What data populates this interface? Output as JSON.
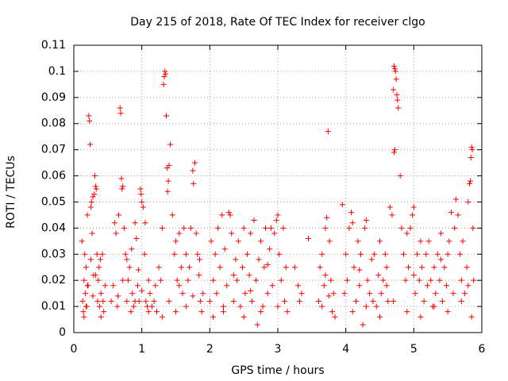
{
  "chart_data": {
    "type": "scatter",
    "title": "Day 215 of 2018, Rate Of TEC Index for receiver clgo",
    "xlabel": "GPS time / hours",
    "ylabel": "ROTI / TECUs",
    "xlim": [
      0,
      6
    ],
    "ylim": [
      0,
      0.11
    ],
    "x_ticks": [
      0,
      1,
      2,
      3,
      4,
      5,
      6
    ],
    "x_tick_labels": [
      "0",
      "1",
      "2",
      "3",
      "4",
      "5",
      "6"
    ],
    "y_ticks": [
      0,
      0.01,
      0.02,
      0.03,
      0.04,
      0.05,
      0.06,
      0.07,
      0.08,
      0.09,
      0.1,
      0.11
    ],
    "y_tick_labels": [
      "0",
      "0.01",
      "0.02",
      "0.03",
      "0.04",
      "0.05",
      "0.06",
      "0.07",
      "0.08",
      "0.09",
      "0.1",
      "0.11"
    ],
    "grid": true,
    "marker": "+",
    "color": "#ff0000",
    "series": [
      {
        "name": "ROTI",
        "points": [
          [
            0.12,
            0.035
          ],
          [
            0.13,
            0.012
          ],
          [
            0.14,
            0.008
          ],
          [
            0.15,
            0.02
          ],
          [
            0.16,
            0.03
          ],
          [
            0.17,
            0.015
          ],
          [
            0.18,
            0.025
          ],
          [
            0.19,
            0.01
          ],
          [
            0.2,
            0.045
          ],
          [
            0.21,
            0.018
          ],
          [
            0.22,
            0.083
          ],
          [
            0.23,
            0.081
          ],
          [
            0.24,
            0.072
          ],
          [
            0.25,
            0.048
          ],
          [
            0.26,
            0.05
          ],
          [
            0.27,
            0.038
          ],
          [
            0.28,
            0.052
          ],
          [
            0.29,
            0.022
          ],
          [
            0.3,
            0.053
          ],
          [
            0.31,
            0.06
          ],
          [
            0.32,
            0.056
          ],
          [
            0.33,
            0.055
          ],
          [
            0.34,
            0.03
          ],
          [
            0.35,
            0.012
          ],
          [
            0.36,
            0.02
          ],
          [
            0.37,
            0.025
          ],
          [
            0.38,
            0.01
          ],
          [
            0.39,
            0.028
          ],
          [
            0.4,
            0.015
          ],
          [
            0.42,
            0.03
          ],
          [
            0.44,
            0.008
          ],
          [
            0.46,
            0.018
          ],
          [
            0.15,
            0.006
          ],
          [
            0.18,
            0.01
          ],
          [
            0.25,
            0.028
          ],
          [
            0.28,
            0.014
          ],
          [
            0.32,
            0.022
          ],
          [
            0.4,
            0.006
          ],
          [
            0.43,
            0.012
          ],
          [
            0.55,
            0.012
          ],
          [
            0.58,
            0.018
          ],
          [
            0.6,
            0.042
          ],
          [
            0.62,
            0.038
          ],
          [
            0.64,
            0.01
          ],
          [
            0.66,
            0.045
          ],
          [
            0.68,
            0.086
          ],
          [
            0.69,
            0.084
          ],
          [
            0.7,
            0.059
          ],
          [
            0.71,
            0.055
          ],
          [
            0.72,
            0.056
          ],
          [
            0.74,
            0.04
          ],
          [
            0.76,
            0.03
          ],
          [
            0.78,
            0.012
          ],
          [
            0.8,
            0.02
          ],
          [
            0.82,
            0.025
          ],
          [
            0.84,
            0.008
          ],
          [
            0.86,
            0.015
          ],
          [
            0.88,
            0.01
          ],
          [
            0.9,
            0.042
          ],
          [
            0.92,
            0.036
          ],
          [
            0.94,
            0.018
          ],
          [
            0.96,
            0.012
          ],
          [
            0.98,
            0.055
          ],
          [
            0.99,
            0.053
          ],
          [
            1.0,
            0.05
          ],
          [
            1.02,
            0.048
          ],
          [
            1.04,
            0.03
          ],
          [
            1.05,
            0.042
          ],
          [
            1.06,
            0.012
          ],
          [
            1.08,
            0.01
          ],
          [
            1.1,
            0.02
          ],
          [
            0.65,
            0.014
          ],
          [
            0.72,
            0.02
          ],
          [
            0.78,
            0.028
          ],
          [
            0.85,
            0.032
          ],
          [
            0.9,
            0.012
          ],
          [
            0.95,
            0.024
          ],
          [
            1.0,
            0.016
          ],
          [
            1.1,
            0.008
          ],
          [
            1.12,
            0.015
          ],
          [
            1.15,
            0.01
          ],
          [
            1.18,
            0.012
          ],
          [
            1.2,
            0.018
          ],
          [
            1.22,
            0.008
          ],
          [
            1.25,
            0.025
          ],
          [
            1.28,
            0.02
          ],
          [
            1.3,
            0.04
          ],
          [
            1.32,
            0.095
          ],
          [
            1.33,
            0.098
          ],
          [
            1.34,
            0.1
          ],
          [
            1.35,
            0.099
          ],
          [
            1.36,
            0.083
          ],
          [
            1.37,
            0.063
          ],
          [
            1.38,
            0.054
          ],
          [
            1.39,
            0.058
          ],
          [
            1.4,
            0.064
          ],
          [
            1.42,
            0.072
          ],
          [
            1.45,
            0.045
          ],
          [
            1.48,
            0.03
          ],
          [
            1.5,
            0.035
          ],
          [
            1.52,
            0.02
          ],
          [
            1.55,
            0.038
          ],
          [
            1.58,
            0.025
          ],
          [
            1.6,
            0.015
          ],
          [
            1.62,
            0.04
          ],
          [
            1.65,
            0.03
          ],
          [
            1.68,
            0.02
          ],
          [
            1.7,
            0.025
          ],
          [
            1.72,
            0.04
          ],
          [
            1.75,
            0.062
          ],
          [
            1.76,
            0.057
          ],
          [
            1.78,
            0.065
          ],
          [
            1.8,
            0.038
          ],
          [
            1.82,
            0.03
          ],
          [
            1.84,
            0.022
          ],
          [
            1.86,
            0.012
          ],
          [
            1.88,
            0.008
          ],
          [
            1.9,
            0.015
          ],
          [
            1.3,
            0.006
          ],
          [
            1.4,
            0.012
          ],
          [
            1.5,
            0.008
          ],
          [
            1.55,
            0.018
          ],
          [
            1.65,
            0.01
          ],
          [
            1.75,
            0.014
          ],
          [
            1.85,
            0.028
          ],
          [
            2.0,
            0.012
          ],
          [
            2.02,
            0.035
          ],
          [
            2.05,
            0.02
          ],
          [
            2.08,
            0.03
          ],
          [
            2.1,
            0.015
          ],
          [
            2.12,
            0.04
          ],
          [
            2.15,
            0.025
          ],
          [
            2.18,
            0.045
          ],
          [
            2.2,
            0.01
          ],
          [
            2.22,
            0.032
          ],
          [
            2.25,
            0.018
          ],
          [
            2.28,
            0.046
          ],
          [
            2.3,
            0.045
          ],
          [
            2.32,
            0.038
          ],
          [
            2.35,
            0.012
          ],
          [
            2.38,
            0.028
          ],
          [
            2.4,
            0.02
          ],
          [
            2.42,
            0.035
          ],
          [
            2.45,
            0.01
          ],
          [
            2.48,
            0.025
          ],
          [
            2.5,
            0.04
          ],
          [
            2.52,
            0.015
          ],
          [
            2.55,
            0.03
          ],
          [
            2.58,
            0.022
          ],
          [
            2.6,
            0.038
          ],
          [
            2.62,
            0.012
          ],
          [
            2.65,
            0.043
          ],
          [
            2.68,
            0.02
          ],
          [
            2.7,
            0.003
          ],
          [
            2.72,
            0.028
          ],
          [
            2.75,
            0.035
          ],
          [
            2.78,
            0.01
          ],
          [
            2.8,
            0.025
          ],
          [
            2.82,
            0.04
          ],
          [
            2.85,
            0.015
          ],
          [
            2.88,
            0.032
          ],
          [
            2.9,
            0.04
          ],
          [
            2.92,
            0.018
          ],
          [
            2.95,
            0.038
          ],
          [
            2.98,
            0.043
          ],
          [
            3.0,
            0.045
          ],
          [
            3.02,
            0.03
          ],
          [
            3.05,
            0.02
          ],
          [
            3.08,
            0.04
          ],
          [
            3.1,
            0.012
          ],
          [
            3.12,
            0.025
          ],
          [
            3.14,
            0.008
          ],
          [
            2.05,
            0.006
          ],
          [
            2.2,
            0.008
          ],
          [
            2.35,
            0.022
          ],
          [
            2.5,
            0.006
          ],
          [
            2.6,
            0.016
          ],
          [
            2.75,
            0.008
          ],
          [
            2.85,
            0.026
          ],
          [
            3.0,
            0.01
          ],
          [
            3.25,
            0.025
          ],
          [
            3.3,
            0.018
          ],
          [
            3.32,
            0.012
          ],
          [
            3.35,
            0.015
          ],
          [
            3.45,
            0.036
          ],
          [
            3.6,
            0.012
          ],
          [
            3.62,
            0.025
          ],
          [
            3.65,
            0.03
          ],
          [
            3.68,
            0.018
          ],
          [
            3.7,
            0.04
          ],
          [
            3.72,
            0.044
          ],
          [
            3.74,
            0.077
          ],
          [
            3.76,
            0.035
          ],
          [
            3.78,
            0.02
          ],
          [
            3.8,
            0.008
          ],
          [
            3.82,
            0.015
          ],
          [
            3.84,
            0.006
          ],
          [
            3.65,
            0.01
          ],
          [
            3.7,
            0.022
          ],
          [
            3.75,
            0.014
          ],
          [
            3.95,
            0.049
          ],
          [
            3.98,
            0.015
          ],
          [
            4.0,
            0.03
          ],
          [
            4.02,
            0.02
          ],
          [
            4.05,
            0.04
          ],
          [
            4.08,
            0.046
          ],
          [
            4.1,
            0.042
          ],
          [
            4.12,
            0.025
          ],
          [
            4.15,
            0.012
          ],
          [
            4.18,
            0.035
          ],
          [
            4.2,
            0.018
          ],
          [
            4.22,
            0.03
          ],
          [
            4.25,
            0.003
          ],
          [
            4.28,
            0.04
          ],
          [
            4.3,
            0.043
          ],
          [
            4.32,
            0.02
          ],
          [
            4.35,
            0.015
          ],
          [
            4.38,
            0.028
          ],
          [
            4.4,
            0.012
          ],
          [
            4.42,
            0.03
          ],
          [
            4.45,
            0.01
          ],
          [
            4.48,
            0.022
          ],
          [
            4.5,
            0.035
          ],
          [
            4.52,
            0.015
          ],
          [
            4.55,
            0.02
          ],
          [
            4.58,
            0.03
          ],
          [
            4.6,
            0.025
          ],
          [
            4.62,
            0.012
          ],
          [
            4.65,
            0.048
          ],
          [
            4.68,
            0.045
          ],
          [
            4.7,
            0.093
          ],
          [
            4.71,
            0.102
          ],
          [
            4.72,
            0.101
          ],
          [
            4.73,
            0.1
          ],
          [
            4.74,
            0.097
          ],
          [
            4.75,
            0.091
          ],
          [
            4.76,
            0.089
          ],
          [
            4.77,
            0.086
          ],
          [
            4.72,
            0.07
          ],
          [
            4.71,
            0.069
          ],
          [
            4.8,
            0.06
          ],
          [
            4.82,
            0.04
          ],
          [
            4.85,
            0.03
          ],
          [
            4.88,
            0.02
          ],
          [
            4.9,
            0.038
          ],
          [
            4.92,
            0.025
          ],
          [
            4.95,
            0.04
          ],
          [
            4.98,
            0.045
          ],
          [
            5.0,
            0.048
          ],
          [
            5.02,
            0.015
          ],
          [
            5.05,
            0.03
          ],
          [
            5.08,
            0.02
          ],
          [
            5.1,
            0.035
          ],
          [
            5.12,
            0.025
          ],
          [
            5.15,
            0.012
          ],
          [
            5.18,
            0.03
          ],
          [
            5.2,
            0.018
          ],
          [
            5.22,
            0.035
          ],
          [
            5.25,
            0.02
          ],
          [
            5.28,
            0.01
          ],
          [
            5.3,
            0.025
          ],
          [
            5.32,
            0.015
          ],
          [
            5.35,
            0.03
          ],
          [
            5.38,
            0.02
          ],
          [
            5.4,
            0.038
          ],
          [
            5.42,
            0.012
          ],
          [
            5.45,
            0.025
          ],
          [
            5.48,
            0.018
          ],
          [
            5.5,
            0.03
          ],
          [
            5.52,
            0.035
          ],
          [
            5.55,
            0.046
          ],
          [
            5.58,
            0.015
          ],
          [
            5.6,
            0.04
          ],
          [
            5.62,
            0.051
          ],
          [
            5.65,
            0.045
          ],
          [
            5.68,
            0.03
          ],
          [
            5.7,
            0.02
          ],
          [
            5.72,
            0.035
          ],
          [
            5.75,
            0.015
          ],
          [
            5.78,
            0.025
          ],
          [
            5.8,
            0.05
          ],
          [
            5.82,
            0.057
          ],
          [
            5.83,
            0.058
          ],
          [
            5.84,
            0.067
          ],
          [
            5.85,
            0.071
          ],
          [
            5.86,
            0.07
          ],
          [
            5.87,
            0.04
          ],
          [
            5.88,
            0.02
          ],
          [
            4.1,
            0.008
          ],
          [
            4.3,
            0.01
          ],
          [
            4.5,
            0.006
          ],
          [
            4.7,
            0.012
          ],
          [
            4.9,
            0.008
          ],
          [
            5.1,
            0.006
          ],
          [
            5.3,
            0.01
          ],
          [
            5.5,
            0.008
          ],
          [
            5.7,
            0.012
          ],
          [
            5.85,
            0.006
          ],
          [
            4.2,
            0.024
          ],
          [
            4.6,
            0.018
          ],
          [
            5.0,
            0.022
          ],
          [
            5.4,
            0.028
          ],
          [
            5.8,
            0.018
          ],
          [
            0.2,
            0.018
          ]
        ]
      }
    ]
  }
}
